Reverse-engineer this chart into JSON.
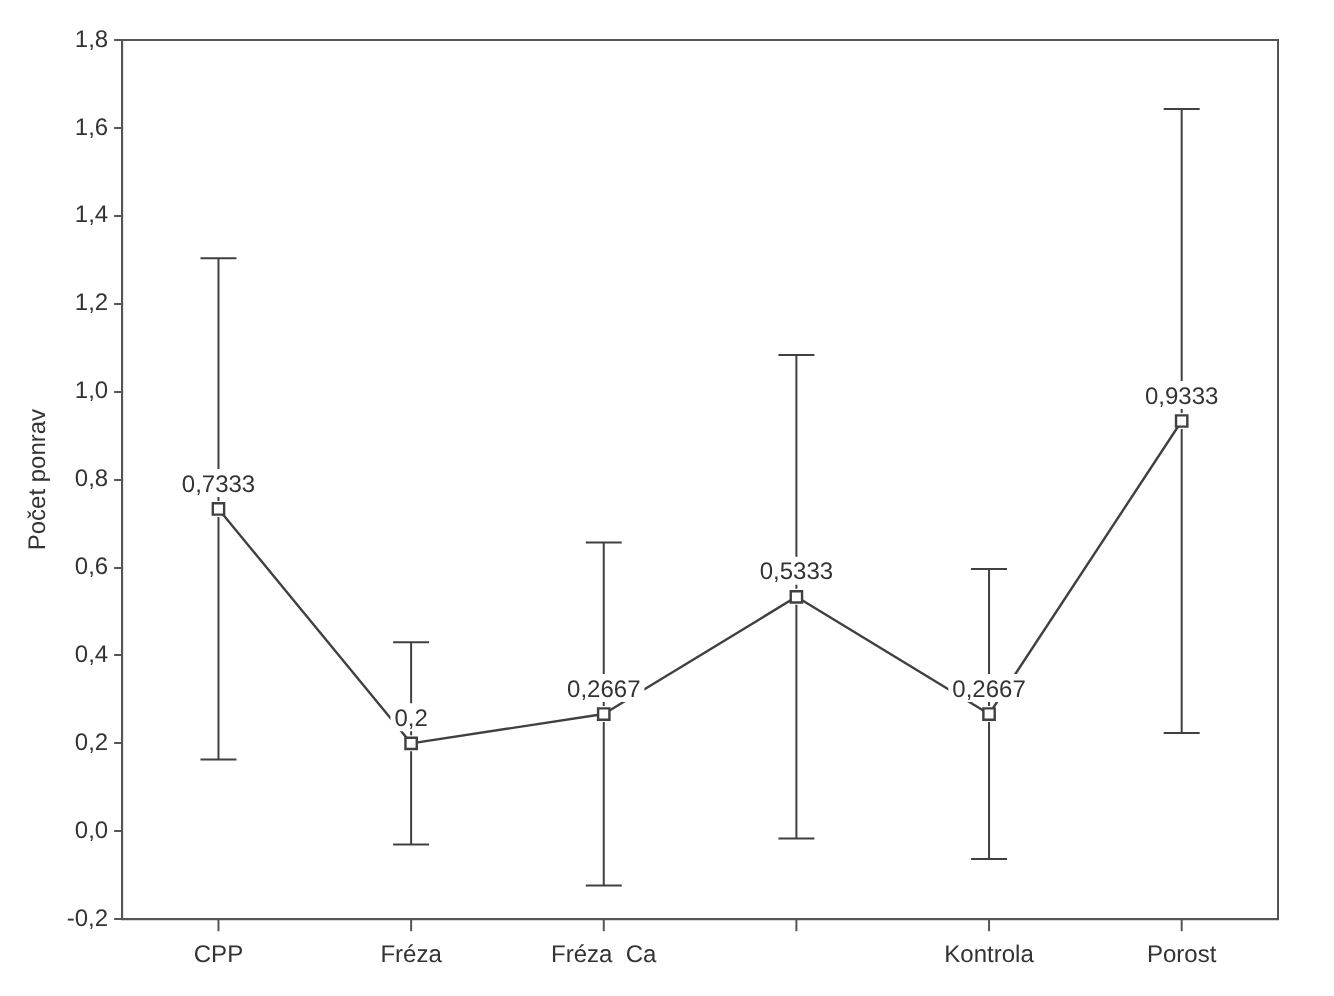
{
  "chart_data": {
    "type": "line",
    "ylabel": "Počet ponrav",
    "categories": [
      "CPP",
      "Fréza",
      "Fréza  Ca",
      null,
      "Kontrola",
      "Porost"
    ],
    "values": [
      0.7333,
      0.2,
      0.2667,
      0.5333,
      0.2667,
      0.9333
    ],
    "errors": [
      0.57,
      0.23,
      0.39,
      0.55,
      0.33,
      0.71
    ],
    "value_labels": [
      "0,7333",
      "0,2",
      "0,2667",
      "0,5333",
      "0,2667",
      "0,9333"
    ],
    "color": "#404040",
    "marker": "square",
    "line_style": "solid",
    "grid": false,
    "legend": false,
    "ylim": [
      -0.2,
      1.8
    ],
    "yticks": [
      {
        "value": -0.2,
        "label": "-0,2"
      },
      {
        "value": 0,
        "label": "0,0"
      },
      {
        "value": 0.2,
        "label": "0,2"
      },
      {
        "value": 0.4,
        "label": "0,4"
      },
      {
        "value": 0.6,
        "label": "0,6"
      },
      {
        "value": 0.8,
        "label": "0,8"
      },
      {
        "value": 1,
        "label": "1,0"
      },
      {
        "value": 1.2,
        "label": "1,2"
      },
      {
        "value": 1.4,
        "label": "1,4"
      },
      {
        "value": 1.6,
        "label": "1,6"
      },
      {
        "value": 1.8,
        "label": "1,8"
      }
    ]
  }
}
